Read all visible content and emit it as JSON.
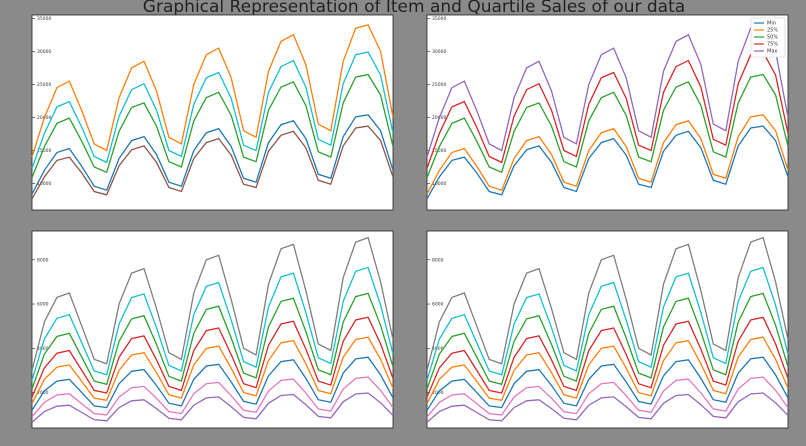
{
  "title": "Graphical Representation of Item and Quartile Sales of our data",
  "chart_data": [
    {
      "type": "line",
      "ylim": [
        6000,
        35500
      ],
      "yticks": [
        10000,
        15000,
        20000,
        25000,
        30000,
        35000
      ],
      "series": [
        {
          "color": "#ff7f0e",
          "values": [
            14000,
            20000,
            24500,
            25500,
            21000,
            16000,
            15000,
            23000,
            27500,
            28500,
            24000,
            17000,
            16000,
            25000,
            29500,
            30500,
            26000,
            18000,
            17000,
            27000,
            31500,
            32500,
            28000,
            19000,
            18000,
            28500,
            33500,
            34000,
            30000,
            20000
          ]
        },
        {
          "color": "#17becf",
          "values": [
            12300,
            17600,
            21600,
            22400,
            18500,
            14100,
            13200,
            20200,
            24200,
            25100,
            21100,
            15000,
            14100,
            22000,
            26000,
            26800,
            22900,
            15800,
            15000,
            23800,
            27700,
            28600,
            24600,
            16700,
            15800,
            25100,
            29500,
            29900,
            26400,
            17600
          ]
        },
        {
          "color": "#2ca02c",
          "values": [
            10900,
            15600,
            19100,
            19900,
            16400,
            12500,
            11700,
            17900,
            21500,
            22200,
            18700,
            13300,
            12500,
            19500,
            23000,
            23800,
            20300,
            14000,
            13300,
            21100,
            24600,
            25400,
            21800,
            14800,
            14000,
            22200,
            26100,
            26500,
            23400,
            15600
          ]
        },
        {
          "color": "#1f77b4",
          "values": [
            8400,
            12000,
            14700,
            15300,
            12600,
            9600,
            9000,
            13800,
            16500,
            17100,
            14400,
            10200,
            9600,
            15000,
            17700,
            18300,
            15600,
            10800,
            10200,
            16200,
            18900,
            19500,
            16800,
            11400,
            10800,
            17100,
            20100,
            20400,
            18000,
            12000
          ]
        },
        {
          "color": "#8c564b",
          "values": [
            7700,
            11000,
            13500,
            14000,
            11600,
            8800,
            8300,
            12700,
            15100,
            15700,
            13200,
            9400,
            8800,
            13800,
            16200,
            16800,
            14300,
            9900,
            9400,
            14900,
            17300,
            17900,
            15400,
            10500,
            9900,
            15700,
            18400,
            18700,
            16500,
            11000
          ]
        }
      ]
    },
    {
      "type": "line",
      "ylim": [
        6000,
        35500
      ],
      "yticks": [
        10000,
        15000,
        20000,
        25000,
        30000,
        35000
      ],
      "legend": "upper right",
      "series": [
        {
          "name": "Min",
          "color": "#1f77b4",
          "values": [
            7700,
            11000,
            13500,
            14000,
            11600,
            8800,
            8300,
            12700,
            15100,
            15700,
            13200,
            9400,
            8800,
            13800,
            16200,
            16800,
            14300,
            9900,
            9400,
            14900,
            17300,
            17900,
            15400,
            10500,
            9900,
            15700,
            18400,
            18700,
            16500,
            11000
          ]
        },
        {
          "name": "25%",
          "color": "#ff7f0e",
          "values": [
            8400,
            12000,
            14700,
            15300,
            12600,
            9600,
            9000,
            13800,
            16500,
            17100,
            14400,
            10200,
            9600,
            15000,
            17700,
            18300,
            15600,
            10800,
            10200,
            16200,
            18900,
            19500,
            16800,
            11400,
            10800,
            17100,
            20100,
            20400,
            18000,
            12000
          ]
        },
        {
          "name": "50%",
          "color": "#2ca02c",
          "values": [
            10900,
            15600,
            19100,
            19900,
            16400,
            12500,
            11700,
            17900,
            21500,
            22200,
            18700,
            13300,
            12500,
            19500,
            23000,
            23800,
            20300,
            14000,
            13300,
            21100,
            24600,
            25400,
            21800,
            14800,
            14000,
            22200,
            26100,
            26500,
            23400,
            15600
          ]
        },
        {
          "name": "75%",
          "color": "#d62728",
          "values": [
            12300,
            17600,
            21600,
            22400,
            18500,
            14100,
            13200,
            20200,
            24200,
            25100,
            21100,
            15000,
            14100,
            22000,
            26000,
            26800,
            22900,
            15800,
            15000,
            23800,
            27700,
            28600,
            24600,
            16700,
            15800,
            25100,
            29500,
            29900,
            26400,
            17600
          ]
        },
        {
          "name": "Max",
          "color": "#9467bd",
          "values": [
            14000,
            20000,
            24500,
            25500,
            21000,
            16000,
            15000,
            23000,
            27500,
            28500,
            24000,
            17000,
            16000,
            25000,
            29500,
            30500,
            26000,
            18000,
            17000,
            27000,
            31500,
            32500,
            28000,
            19000,
            18000,
            28500,
            33500,
            34000,
            30000,
            20000
          ]
        }
      ]
    },
    {
      "type": "line",
      "ylim": [
        400,
        9300
      ],
      "yticks": [
        2000,
        4000,
        6000,
        8000
      ],
      "series": [
        {
          "color": "#7f7f7f",
          "values": [
            3000,
            5200,
            6300,
            6500,
            5000,
            3500,
            3300,
            6000,
            7400,
            7600,
            5800,
            3800,
            3500,
            6500,
            8000,
            8200,
            6200,
            4000,
            3700,
            6900,
            8500,
            8700,
            6600,
            4200,
            3900,
            7200,
            8800,
            9000,
            7000,
            4400
          ]
        },
        {
          "color": "#17becf",
          "values": [
            2550,
            4420,
            5355,
            5525,
            4250,
            2975,
            2805,
            5100,
            6290,
            6460,
            4930,
            3230,
            2975,
            5525,
            6800,
            6970,
            5270,
            3400,
            3145,
            5865,
            7225,
            7395,
            5610,
            3570,
            3315,
            6120,
            7480,
            7650,
            5950,
            3740
          ]
        },
        {
          "color": "#2ca02c",
          "values": [
            2160,
            3744,
            4536,
            4680,
            3600,
            2520,
            2376,
            4320,
            5328,
            5472,
            4176,
            2736,
            2520,
            4680,
            5760,
            5904,
            4464,
            2880,
            2664,
            4968,
            6120,
            6264,
            4752,
            3024,
            2808,
            5184,
            6336,
            6480,
            5040,
            3168
          ]
        },
        {
          "color": "#d62728",
          "values": [
            1800,
            3120,
            3780,
            3900,
            3000,
            2100,
            1980,
            3600,
            4440,
            4560,
            3480,
            2280,
            2100,
            3900,
            4800,
            4920,
            3720,
            2400,
            2220,
            4140,
            5100,
            5220,
            3960,
            2520,
            2340,
            4320,
            5280,
            5400,
            4200,
            2640
          ]
        },
        {
          "color": "#ff7f0e",
          "values": [
            1500,
            2600,
            3150,
            3250,
            2500,
            1750,
            1650,
            3000,
            3700,
            3800,
            2900,
            1900,
            1750,
            3250,
            4000,
            4100,
            3100,
            2000,
            1850,
            3450,
            4250,
            4350,
            3300,
            2100,
            1950,
            3600,
            4400,
            4500,
            3500,
            2200
          ]
        },
        {
          "color": "#1f77b4",
          "values": [
            1200,
            2080,
            2520,
            2600,
            2000,
            1400,
            1320,
            2400,
            2960,
            3040,
            2320,
            1520,
            1400,
            2600,
            3200,
            3280,
            2480,
            1600,
            1480,
            2760,
            3400,
            3480,
            2640,
            1680,
            1560,
            2880,
            3520,
            3600,
            2800,
            1760
          ]
        },
        {
          "color": "#e377c2",
          "values": [
            900,
            1560,
            1890,
            1950,
            1500,
            1050,
            990,
            1800,
            2220,
            2280,
            1740,
            1140,
            1050,
            1950,
            2400,
            2460,
            1860,
            1200,
            1110,
            2070,
            2550,
            2610,
            1980,
            1260,
            1170,
            2160,
            2640,
            2700,
            2100,
            1320
          ]
        },
        {
          "color": "#9467bd",
          "values": [
            660,
            1144,
            1386,
            1430,
            1100,
            770,
            726,
            1320,
            1628,
            1672,
            1276,
            836,
            770,
            1430,
            1760,
            1804,
            1364,
            880,
            814,
            1518,
            1870,
            1914,
            1452,
            924,
            858,
            1584,
            1936,
            1980,
            1540,
            968
          ]
        }
      ]
    },
    {
      "type": "line",
      "ylim": [
        400,
        9300
      ],
      "yticks": [
        2000,
        4000,
        6000,
        8000
      ],
      "series": [
        {
          "color": "#7f7f7f",
          "values": [
            3000,
            5200,
            6300,
            6500,
            5000,
            3500,
            3300,
            6000,
            7400,
            7600,
            5800,
            3800,
            3500,
            6500,
            8000,
            8200,
            6200,
            4000,
            3700,
            6900,
            8500,
            8700,
            6600,
            4200,
            3900,
            7200,
            8800,
            9000,
            7000,
            4400
          ]
        },
        {
          "color": "#17becf",
          "values": [
            2550,
            4420,
            5355,
            5525,
            4250,
            2975,
            2805,
            5100,
            6290,
            6460,
            4930,
            3230,
            2975,
            5525,
            6800,
            6970,
            5270,
            3400,
            3145,
            5865,
            7225,
            7395,
            5610,
            3570,
            3315,
            6120,
            7480,
            7650,
            5950,
            3740
          ]
        },
        {
          "color": "#2ca02c",
          "values": [
            2160,
            3744,
            4536,
            4680,
            3600,
            2520,
            2376,
            4320,
            5328,
            5472,
            4176,
            2736,
            2520,
            4680,
            5760,
            5904,
            4464,
            2880,
            2664,
            4968,
            6120,
            6264,
            4752,
            3024,
            2808,
            5184,
            6336,
            6480,
            5040,
            3168
          ]
        },
        {
          "color": "#d62728",
          "values": [
            1800,
            3120,
            3780,
            3900,
            3000,
            2100,
            1980,
            3600,
            4440,
            4560,
            3480,
            2280,
            2100,
            3900,
            4800,
            4920,
            3720,
            2400,
            2220,
            4140,
            5100,
            5220,
            3960,
            2520,
            2340,
            4320,
            5280,
            5400,
            4200,
            2640
          ]
        },
        {
          "color": "#ff7f0e",
          "values": [
            1500,
            2600,
            3150,
            3250,
            2500,
            1750,
            1650,
            3000,
            3700,
            3800,
            2900,
            1900,
            1750,
            3250,
            4000,
            4100,
            3100,
            2000,
            1850,
            3450,
            4250,
            4350,
            3300,
            2100,
            1950,
            3600,
            4400,
            4500,
            3500,
            2200
          ]
        },
        {
          "color": "#1f77b4",
          "values": [
            1200,
            2080,
            2520,
            2600,
            2000,
            1400,
            1320,
            2400,
            2960,
            3040,
            2320,
            1520,
            1400,
            2600,
            3200,
            3280,
            2480,
            1600,
            1480,
            2760,
            3400,
            3480,
            2640,
            1680,
            1560,
            2880,
            3520,
            3600,
            2800,
            1760
          ]
        },
        {
          "color": "#e377c2",
          "values": [
            900,
            1560,
            1890,
            1950,
            1500,
            1050,
            990,
            1800,
            2220,
            2280,
            1740,
            1140,
            1050,
            1950,
            2400,
            2460,
            1860,
            1200,
            1110,
            2070,
            2550,
            2610,
            1980,
            1260,
            1170,
            2160,
            2640,
            2700,
            2100,
            1320
          ]
        },
        {
          "color": "#9467bd",
          "values": [
            660,
            1144,
            1386,
            1430,
            1100,
            770,
            726,
            1320,
            1628,
            1672,
            1276,
            836,
            770,
            1430,
            1760,
            1804,
            1364,
            880,
            814,
            1518,
            1870,
            1914,
            1452,
            924,
            858,
            1584,
            1936,
            1980,
            1540,
            968
          ]
        }
      ]
    }
  ]
}
